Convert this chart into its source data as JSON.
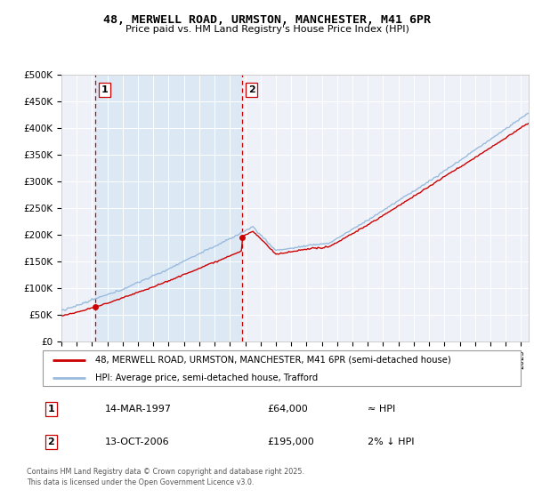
{
  "title": "48, MERWELL ROAD, URMSTON, MANCHESTER, M41 6PR",
  "subtitle": "Price paid vs. HM Land Registry's House Price Index (HPI)",
  "legend_line1": "48, MERWELL ROAD, URMSTON, MANCHESTER, M41 6PR (semi-detached house)",
  "legend_line2": "HPI: Average price, semi-detached house, Trafford",
  "annotation1_date": "14-MAR-1997",
  "annotation1_price": "£64,000",
  "annotation1_hpi": "≈ HPI",
  "annotation2_date": "13-OCT-2006",
  "annotation2_price": "£195,000",
  "annotation2_hpi": "2% ↓ HPI",
  "footer": "Contains HM Land Registry data © Crown copyright and database right 2025.\nThis data is licensed under the Open Government Licence v3.0.",
  "property_color": "#cc0000",
  "hpi_color": "#99bbdd",
  "annotation_vline_color": "#cc0000",
  "plot_bg_color": "#eef2f8",
  "shaded_bg_color": "#dde8f5",
  "ylim": [
    0,
    500000
  ],
  "yticks": [
    0,
    50000,
    100000,
    150000,
    200000,
    250000,
    300000,
    350000,
    400000,
    450000,
    500000
  ],
  "ytick_labels": [
    "£0",
    "£50K",
    "£100K",
    "£150K",
    "£200K",
    "£250K",
    "£300K",
    "£350K",
    "£400K",
    "£450K",
    "£500K"
  ],
  "sale1_x": 1997.2,
  "sale1_y": 64000,
  "sale2_x": 2006.79,
  "sale2_y": 195000,
  "xlim_left": 1995.0,
  "xlim_right": 2025.5
}
